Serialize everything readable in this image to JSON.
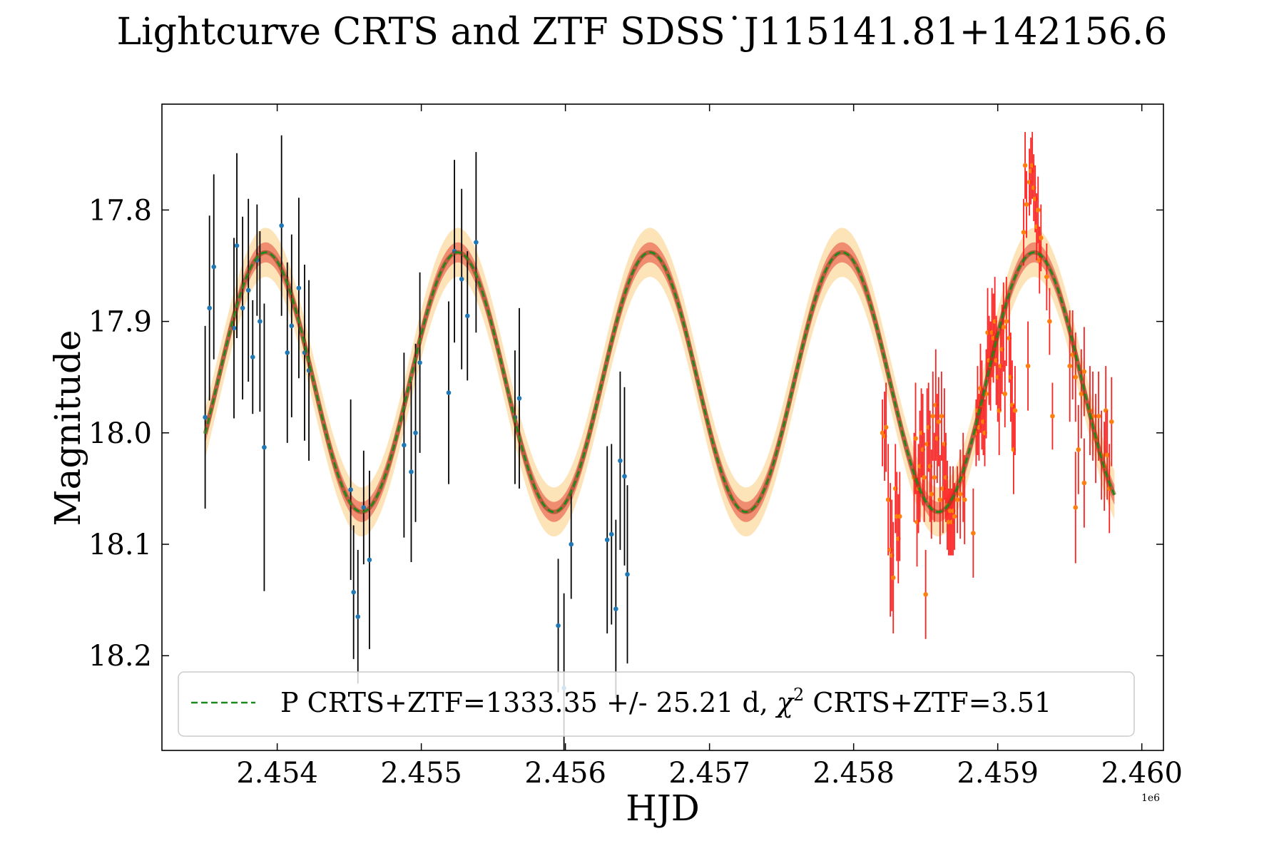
{
  "chart_data": {
    "type": "scatter",
    "title": "Lightcurve CRTS and ZTF SDSS˙J115141.81+142156.6",
    "xlabel": "HJD",
    "ylabel": "Magnitude",
    "x_offset_label": "1e6",
    "xlim": [
      2453200,
      2460150
    ],
    "ylim": [
      18.285,
      17.705
    ],
    "y_inverted": true,
    "xticks": [
      2454000,
      2455000,
      2456000,
      2457000,
      2458000,
      2459000,
      2460000
    ],
    "xtick_labels": [
      "2.454",
      "2.455",
      "2.456",
      "2.457",
      "2.458",
      "2.459",
      "2.460"
    ],
    "yticks": [
      17.8,
      17.9,
      18.0,
      18.1,
      18.2
    ],
    "ytick_labels": [
      "17.8",
      "17.9",
      "18.0",
      "18.1",
      "18.2"
    ],
    "legend": {
      "position": "lower-center",
      "text": "P CRTS+ZTF=1333.35 +/- 25.21 d, ",
      "chi_symbol": "χ",
      "chi_exponent": "2",
      "chi_text": " CRTS+ZTF=3.51"
    },
    "model": {
      "name": "P CRTS+ZTF=1333.35 +/- 25.21 d, χ2 CRTS+ZTF=3.51",
      "period": 1333.35,
      "mean": 17.9545,
      "amplitude": 0.1165,
      "peak_hjd": 2453920,
      "x_start": 2453500,
      "x_end": 2459810,
      "band_inner": 0.009,
      "band_outer": 0.022,
      "line_color": "#1a8a1a",
      "band_inner_color": "#f08c70",
      "band_outer_color": "#fde3b8"
    },
    "series": [
      {
        "name": "CRTS",
        "marker_color": "#1f77b4",
        "errorbar_color": "#000000",
        "points": [
          [
            2453500,
            17.986,
            0.082
          ],
          [
            2453530,
            17.888,
            0.083
          ],
          [
            2453560,
            17.851,
            0.083
          ],
          [
            2453700,
            17.906,
            0.081
          ],
          [
            2453720,
            17.832,
            0.083
          ],
          [
            2453760,
            17.888,
            0.082
          ],
          [
            2453800,
            17.872,
            0.082
          ],
          [
            2453830,
            17.932,
            0.051
          ],
          [
            2453860,
            17.845,
            0.05
          ],
          [
            2453880,
            17.9,
            0.081
          ],
          [
            2453910,
            18.013,
            0.129
          ],
          [
            2454030,
            17.814,
            0.081
          ],
          [
            2454070,
            17.928,
            0.081
          ],
          [
            2454100,
            17.904,
            0.082
          ],
          [
            2454150,
            17.87,
            0.081
          ],
          [
            2454190,
            17.928,
            0.079
          ],
          [
            2454220,
            17.944,
            0.081
          ],
          [
            2454510,
            18.051,
            0.081
          ],
          [
            2454530,
            18.143,
            0.06
          ],
          [
            2454560,
            18.165,
            0.06
          ],
          [
            2454600,
            18.067,
            0.051
          ],
          [
            2454640,
            18.114,
            0.08
          ],
          [
            2454880,
            18.011,
            0.083
          ],
          [
            2454930,
            18.035,
            0.081
          ],
          [
            2454960,
            18.0,
            0.08
          ],
          [
            2454990,
            17.937,
            0.081
          ],
          [
            2455190,
            17.964,
            0.082
          ],
          [
            2455230,
            17.837,
            0.082
          ],
          [
            2455280,
            17.862,
            0.081
          ],
          [
            2455320,
            17.895,
            0.058
          ],
          [
            2455380,
            17.829,
            0.081
          ],
          [
            2455650,
            17.986,
            0.06
          ],
          [
            2455680,
            17.969,
            0.081
          ],
          [
            2455950,
            18.173,
            0.06
          ],
          [
            2455990,
            18.229,
            0.085
          ],
          [
            2456040,
            18.1,
            0.049
          ],
          [
            2456290,
            18.096,
            0.084
          ],
          [
            2456320,
            18.091,
            0.081
          ],
          [
            2456350,
            18.158,
            0.08
          ],
          [
            2456380,
            18.025,
            0.08
          ],
          [
            2456410,
            18.039,
            0.08
          ],
          [
            2456430,
            18.127,
            0.08
          ]
        ]
      },
      {
        "name": "ZTF",
        "marker_color": "#ff7f0e",
        "errorbar_color": "#ff2020",
        "points": [
          [
            2458200,
            18.0,
            0.03
          ],
          [
            2458215,
            18.003,
            0.04
          ],
          [
            2458225,
            17.995,
            0.04
          ],
          [
            2458240,
            18.06,
            0.05
          ],
          [
            2458255,
            18.105,
            0.06
          ],
          [
            2458265,
            18.11,
            0.05
          ],
          [
            2458275,
            18.13,
            0.05
          ],
          [
            2458290,
            18.05,
            0.04
          ],
          [
            2458300,
            18.075,
            0.04
          ],
          [
            2458310,
            18.095,
            0.04
          ],
          [
            2458320,
            18.075,
            0.04
          ],
          [
            2458420,
            18.04,
            0.04
          ],
          [
            2458430,
            18.005,
            0.05
          ],
          [
            2458440,
            18.08,
            0.04
          ],
          [
            2458450,
            18.05,
            0.04
          ],
          [
            2458460,
            18.03,
            0.05
          ],
          [
            2458470,
            18.0,
            0.04
          ],
          [
            2458480,
            18.015,
            0.05
          ],
          [
            2458490,
            18.04,
            0.04
          ],
          [
            2458500,
            18.145,
            0.04
          ],
          [
            2458510,
            18.01,
            0.05
          ],
          [
            2458520,
            17.995,
            0.04
          ],
          [
            2458530,
            18.03,
            0.05
          ],
          [
            2458540,
            18.055,
            0.04
          ],
          [
            2458550,
            17.985,
            0.04
          ],
          [
            2458560,
            18.04,
            0.04
          ],
          [
            2458570,
            17.975,
            0.05
          ],
          [
            2458580,
            18.005,
            0.04
          ],
          [
            2458590,
            17.99,
            0.04
          ],
          [
            2458600,
            18.06,
            0.04
          ],
          [
            2458610,
            17.985,
            0.04
          ],
          [
            2458620,
            18.05,
            0.04
          ],
          [
            2458630,
            18.01,
            0.05
          ],
          [
            2458640,
            18.04,
            0.04
          ],
          [
            2458650,
            18.065,
            0.04
          ],
          [
            2458660,
            18.08,
            0.03
          ],
          [
            2458670,
            18.07,
            0.04
          ],
          [
            2458680,
            18.08,
            0.03
          ],
          [
            2458690,
            18.07,
            0.04
          ],
          [
            2458700,
            18.075,
            0.03
          ],
          [
            2458720,
            18.06,
            0.03
          ],
          [
            2458740,
            18.055,
            0.04
          ],
          [
            2458760,
            18.04,
            0.04
          ],
          [
            2458770,
            18.06,
            0.04
          ],
          [
            2458830,
            18.09,
            0.04
          ],
          [
            2458850,
            18.0,
            0.03
          ],
          [
            2458860,
            17.98,
            0.04
          ],
          [
            2458870,
            17.995,
            0.03
          ],
          [
            2458880,
            17.96,
            0.04
          ],
          [
            2458890,
            17.975,
            0.04
          ],
          [
            2458900,
            17.99,
            0.03
          ],
          [
            2458910,
            18.0,
            0.03
          ],
          [
            2458920,
            17.965,
            0.04
          ],
          [
            2458930,
            17.91,
            0.04
          ],
          [
            2458940,
            17.935,
            0.04
          ],
          [
            2458950,
            17.94,
            0.04
          ],
          [
            2458960,
            17.91,
            0.04
          ],
          [
            2458970,
            17.915,
            0.04
          ],
          [
            2458980,
            17.9,
            0.04
          ],
          [
            2458990,
            17.935,
            0.04
          ],
          [
            2459000,
            17.95,
            0.04
          ],
          [
            2459010,
            17.98,
            0.04
          ],
          [
            2459020,
            17.94,
            0.04
          ],
          [
            2459030,
            17.925,
            0.04
          ],
          [
            2459040,
            17.905,
            0.04
          ],
          [
            2459050,
            17.965,
            0.03
          ],
          [
            2459060,
            17.9,
            0.04
          ],
          [
            2459080,
            17.915,
            0.04
          ],
          [
            2459090,
            17.95,
            0.04
          ],
          [
            2459100,
            17.975,
            0.04
          ],
          [
            2459110,
            18.015,
            0.04
          ],
          [
            2459120,
            17.98,
            0.04
          ],
          [
            2459180,
            17.82,
            0.03
          ],
          [
            2459190,
            17.76,
            0.03
          ],
          [
            2459200,
            17.795,
            0.03
          ],
          [
            2459210,
            17.94,
            0.04
          ],
          [
            2459220,
            17.775,
            0.03
          ],
          [
            2459230,
            17.765,
            0.03
          ],
          [
            2459240,
            17.76,
            0.03
          ],
          [
            2459250,
            17.78,
            0.03
          ],
          [
            2459260,
            17.79,
            0.03
          ],
          [
            2459270,
            17.815,
            0.03
          ],
          [
            2459280,
            17.8,
            0.03
          ],
          [
            2459290,
            17.845,
            0.03
          ],
          [
            2459300,
            17.825,
            0.03
          ],
          [
            2459340,
            17.86,
            0.03
          ],
          [
            2459360,
            17.9,
            0.03
          ],
          [
            2459380,
            17.985,
            0.03
          ],
          [
            2459500,
            17.94,
            0.05
          ],
          [
            2459520,
            17.93,
            0.04
          ],
          [
            2459540,
            17.95,
            0.04
          ],
          [
            2459560,
            18.015,
            0.04
          ],
          [
            2459580,
            17.965,
            0.04
          ],
          [
            2459600,
            17.945,
            0.04
          ],
          [
            2459640,
            17.98,
            0.04
          ],
          [
            2459660,
            17.985,
            0.04
          ],
          [
            2459680,
            18.005,
            0.04
          ],
          [
            2459700,
            17.985,
            0.04
          ],
          [
            2459720,
            18.02,
            0.04
          ],
          [
            2459740,
            18.03,
            0.04
          ],
          [
            2459750,
            17.98,
            0.04
          ],
          [
            2459760,
            18.02,
            0.04
          ],
          [
            2459775,
            18.05,
            0.04
          ],
          [
            2459790,
            17.99,
            0.04
          ],
          [
            2459540,
            18.067,
            0.05
          ],
          [
            2459600,
            18.045,
            0.04
          ]
        ]
      }
    ]
  }
}
